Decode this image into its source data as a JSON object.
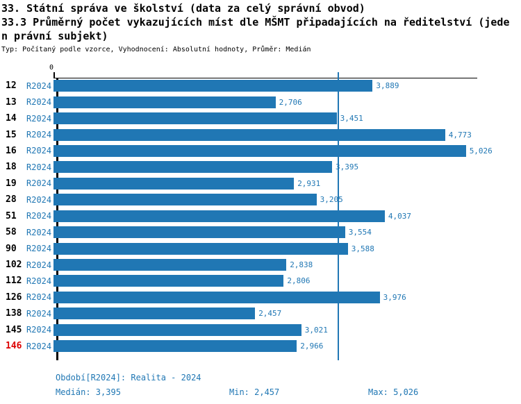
{
  "header": {
    "title_line1": "33. Státní správa ve školství (data za celý správní obvod)",
    "title_line2": "33.3 Průměrný počet vykazujících míst dle MŠMT připadajících na ředitelství (jede",
    "title_line3": "n právní subjekt)",
    "subtitle": "Typ: Počítaný podle vzorce, Vyhodnocení: Absolutní hodnoty, Průměr: Medián"
  },
  "chart_data": {
    "type": "bar",
    "orientation": "horizontal",
    "axis_zero_label": "0",
    "series_name": "R2024",
    "categories": [
      "12",
      "13",
      "14",
      "15",
      "16",
      "18",
      "19",
      "28",
      "51",
      "58",
      "90",
      "102",
      "112",
      "126",
      "138",
      "145",
      "146"
    ],
    "values": [
      3889,
      2706,
      3451,
      4773,
      5026,
      3395,
      2931,
      3205,
      4037,
      3554,
      3588,
      2838,
      2806,
      3976,
      2457,
      3021,
      2966
    ],
    "value_labels": [
      "3,889",
      "2,706",
      "3,451",
      "4,773",
      "5,026",
      "3,395",
      "2,931",
      "3,205",
      "4,037",
      "3,554",
      "3,588",
      "2,838",
      "2,806",
      "3,976",
      "2,457",
      "3,021",
      "2,966"
    ],
    "median": 3395,
    "min": 2457,
    "max": 5026,
    "highlight_category": "146",
    "grid": false,
    "legend": "none",
    "colors": {
      "bar": "#2077b4",
      "value_label": "#2077b4",
      "period_label": "#2077b4",
      "median_line": "#2077b4",
      "category_label": "#000000",
      "highlight_category": "#dd0000",
      "axis": "#000000",
      "footer_text": "#2077b4"
    }
  },
  "footer": {
    "period_label": "Období[R2024]: Realita - 2024",
    "median_label": "Medián: 3,395",
    "min_label": "Min: 2,457",
    "max_label": "Max: 5,026"
  }
}
